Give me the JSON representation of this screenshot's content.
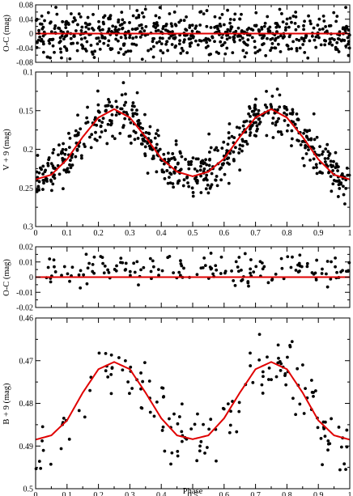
{
  "chart_data": [
    {
      "id": "oc_v",
      "type": "scatter",
      "ylabel": "O-C (mag)",
      "xlim": [
        0,
        1
      ],
      "ylim": [
        0.08,
        -0.08
      ],
      "y_ticks": [
        0.08,
        0.04,
        0,
        -0.04,
        -0.08
      ],
      "y_tick_labels": [
        "0.08",
        "0.04",
        "0",
        "-0.04",
        "-0.08"
      ],
      "x_ticks": [
        0,
        0.1,
        0.2,
        0.3,
        0.4,
        0.5,
        0.6,
        0.7,
        0.8,
        0.9,
        1
      ],
      "x_tick_labels_shown": false,
      "fit_line": {
        "type": "constant",
        "value": 0,
        "color": "#e00000"
      },
      "points": {
        "count": 600,
        "distribution": "uniform in phase",
        "scatter_range": [
          -0.075,
          0.075
        ],
        "color": "#000000"
      }
    },
    {
      "id": "v_light",
      "type": "scatter",
      "ylabel": "V + 9 (mag)",
      "xlim": [
        0,
        1
      ],
      "ylim": [
        0.1,
        0.3
      ],
      "y_ticks": [
        0.1,
        0.15,
        0.2,
        0.25,
        0.3
      ],
      "y_tick_labels": [
        "0.1",
        "0.15",
        "0.2",
        "0.25",
        "0.3"
      ],
      "x_ticks": [
        0,
        0.1,
        0.2,
        0.3,
        0.4,
        0.5,
        0.6,
        0.7,
        0.8,
        0.9,
        1
      ],
      "x_tick_labels": [
        "0",
        "0.1",
        "0.2",
        "0.3",
        "0.4",
        "0.5",
        "0.6",
        "0.7",
        "0.8",
        "0.9",
        "1"
      ],
      "fit_curve": {
        "color": "#e00000",
        "phase": [
          0,
          0.05,
          0.1,
          0.15,
          0.2,
          0.25,
          0.3,
          0.35,
          0.4,
          0.45,
          0.5,
          0.55,
          0.6,
          0.65,
          0.7,
          0.75,
          0.8,
          0.85,
          0.9,
          0.95,
          1
        ],
        "mag": [
          0.239,
          0.233,
          0.213,
          0.184,
          0.159,
          0.148,
          0.159,
          0.184,
          0.212,
          0.229,
          0.235,
          0.229,
          0.212,
          0.184,
          0.159,
          0.148,
          0.159,
          0.184,
          0.213,
          0.233,
          0.239
        ]
      },
      "points": {
        "count": 600,
        "distribution": "uniform in phase",
        "scatter_about_fit": 0.016,
        "color": "#000000"
      }
    },
    {
      "id": "oc_b",
      "type": "scatter",
      "ylabel": "O-C (mag)",
      "xlim": [
        0,
        1
      ],
      "ylim": [
        0.02,
        -0.02
      ],
      "y_ticks": [
        0.02,
        0.01,
        0,
        -0.01,
        -0.02
      ],
      "y_tick_labels": [
        "0.02",
        "0.01",
        "0",
        "-0.01",
        "-0.02"
      ],
      "x_ticks": [
        0,
        0.1,
        0.2,
        0.3,
        0.4,
        0.5,
        0.6,
        0.7,
        0.8,
        0.9,
        1
      ],
      "x_tick_labels_shown": false,
      "fit_line": {
        "type": "constant",
        "value": 0,
        "color": "#e00000"
      },
      "points": {
        "count": 160,
        "distribution": "uniform in phase",
        "scatter_range": [
          -0.008,
          0.017
        ],
        "color": "#000000"
      }
    },
    {
      "id": "b_light",
      "type": "scatter",
      "ylabel": "B + 9 (mag)",
      "xlabel": "Phase",
      "xlim": [
        0,
        1
      ],
      "ylim": [
        0.46,
        0.5
      ],
      "y_ticks": [
        0.46,
        0.47,
        0.48,
        0.49,
        0.5
      ],
      "y_tick_labels": [
        "0.46",
        "0.47",
        "0.48",
        "0.49",
        "0.5"
      ],
      "x_ticks": [
        0,
        0.1,
        0.2,
        0.3,
        0.4,
        0.5,
        0.6,
        0.7,
        0.8,
        0.9,
        1
      ],
      "x_tick_labels": [
        "0",
        "0.1",
        "0.2",
        "0.3",
        "0.4",
        "0.5",
        "0.6",
        "0.7",
        "0.8",
        "0.9",
        "1"
      ],
      "fit_curve": {
        "color": "#e00000",
        "phase": [
          0,
          0.05,
          0.1,
          0.15,
          0.2,
          0.25,
          0.3,
          0.35,
          0.4,
          0.45,
          0.5,
          0.55,
          0.6,
          0.65,
          0.7,
          0.75,
          0.8,
          0.85,
          0.9,
          0.95,
          1
        ],
        "mag": [
          0.4885,
          0.4875,
          0.484,
          0.4775,
          0.472,
          0.4703,
          0.472,
          0.4775,
          0.4835,
          0.4875,
          0.4884,
          0.4875,
          0.4835,
          0.4775,
          0.472,
          0.4703,
          0.472,
          0.4775,
          0.484,
          0.4875,
          0.4885
        ]
      },
      "points": {
        "count": 160,
        "distribution": "uniform in phase",
        "scatter_about_fit": 0.004,
        "color": "#000000"
      }
    }
  ]
}
